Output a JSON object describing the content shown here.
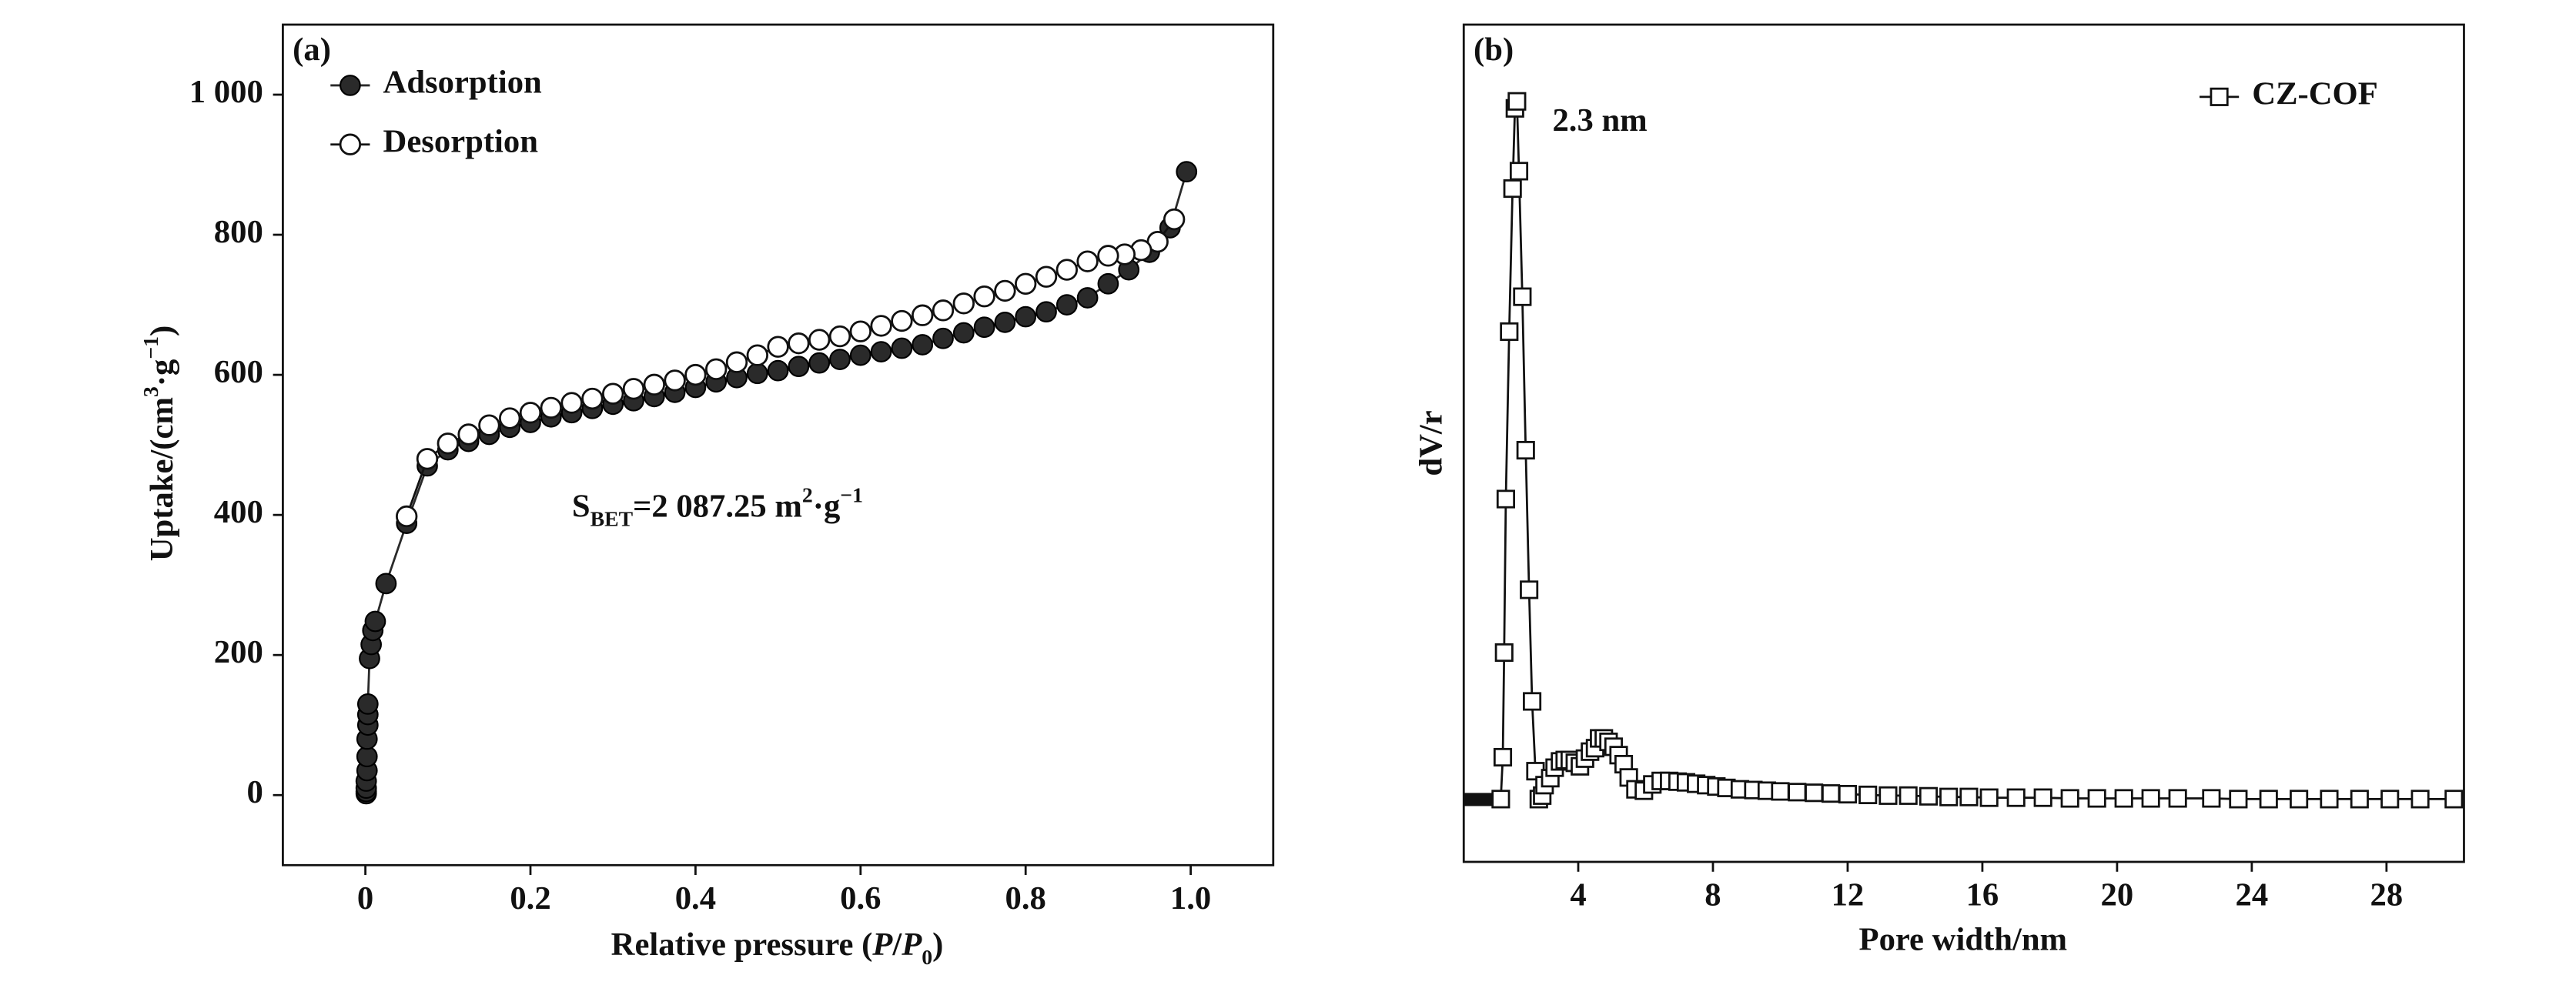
{
  "chart_data": [
    {
      "type": "scatter",
      "panel_label": "(a)",
      "xlabel": {
        "parts": [
          "Relative pressure (",
          "P",
          "/",
          "P",
          "0",
          ")"
        ]
      },
      "ylabel": {
        "parts": [
          "Uptake/(cm",
          "3",
          "·g",
          "−1",
          ")"
        ]
      },
      "annotation": {
        "parts": [
          "S",
          "BET",
          "=2 087.25 m",
          "2",
          "·g",
          "−1"
        ]
      },
      "xlim": [
        -0.1,
        1.1
      ],
      "ylim": [
        -100,
        1100
      ],
      "xticks": [
        0,
        0.2,
        0.4,
        0.6,
        0.8,
        {
          "value": 1,
          "label": "1.0"
        }
      ],
      "yticks": [
        0,
        200,
        400,
        600,
        800,
        {
          "value": 1000,
          "label": "1 000"
        }
      ],
      "legend": "upper left",
      "series": [
        {
          "name": "Adsorption",
          "color": "#2a2a2a",
          "marker": "filled-circle",
          "x": [
            0.001,
            0.001,
            0.001,
            0.001,
            0.002,
            0.002,
            0.002,
            0.003,
            0.003,
            0.003,
            0.005,
            0.007,
            0.009,
            0.012,
            0.025,
            0.05,
            0.075,
            0.1,
            0.125,
            0.15,
            0.175,
            0.2,
            0.225,
            0.25,
            0.275,
            0.3,
            0.325,
            0.35,
            0.375,
            0.4,
            0.425,
            0.45,
            0.475,
            0.5,
            0.525,
            0.55,
            0.575,
            0.6,
            0.625,
            0.65,
            0.675,
            0.7,
            0.725,
            0.75,
            0.775,
            0.8,
            0.825,
            0.85,
            0.875,
            0.9,
            0.925,
            0.95,
            0.975,
            0.995
          ],
          "values": [
            2,
            5,
            10,
            20,
            35,
            55,
            80,
            100,
            115,
            130,
            195,
            215,
            235,
            248,
            302,
            388,
            470,
            493,
            505,
            515,
            525,
            532,
            540,
            546,
            552,
            558,
            563,
            569,
            575,
            582,
            590,
            596,
            602,
            606,
            612,
            617,
            622,
            628,
            633,
            638,
            643,
            652,
            660,
            668,
            675,
            683,
            690,
            700,
            710,
            730,
            750,
            775,
            810,
            890
          ]
        },
        {
          "name": "Desorption",
          "color": "#111111",
          "marker": "open-circle",
          "x": [
            0.98,
            0.96,
            0.94,
            0.92,
            0.9,
            0.875,
            0.85,
            0.825,
            0.8,
            0.775,
            0.75,
            0.725,
            0.7,
            0.675,
            0.65,
            0.625,
            0.6,
            0.575,
            0.55,
            0.525,
            0.5,
            0.475,
            0.45,
            0.425,
            0.4,
            0.375,
            0.35,
            0.325,
            0.3,
            0.275,
            0.25,
            0.225,
            0.2,
            0.175,
            0.15,
            0.125,
            0.1,
            0.075,
            0.05
          ],
          "values": [
            822,
            790,
            778,
            772,
            770,
            762,
            750,
            740,
            730,
            720,
            712,
            702,
            692,
            685,
            677,
            670,
            662,
            655,
            650,
            645,
            640,
            628,
            618,
            608,
            600,
            592,
            586,
            580,
            573,
            566,
            560,
            553,
            546,
            538,
            528,
            515,
            502,
            480,
            398
          ]
        }
      ]
    },
    {
      "type": "scatter",
      "panel_label": "(b)",
      "xlabel": "Pore width/nm",
      "ylabel": "dV/r",
      "annotation": "2.3 nm",
      "xlim": [
        0.6,
        30.3
      ],
      "ylim": [
        -0.09,
        1.11
      ],
      "xticks": [
        4,
        8,
        12,
        16,
        20,
        24,
        28
      ],
      "legend": "upper right",
      "series": [
        {
          "name": "CZ-COF",
          "color": "#111111",
          "marker": "open-square",
          "x": [
            1.7,
            1.76,
            1.8,
            1.85,
            1.95,
            2.05,
            2.12,
            2.18,
            2.24,
            2.34,
            2.44,
            2.54,
            2.63,
            2.73,
            2.83,
            2.93,
            3.0,
            3.17,
            3.3,
            3.46,
            3.6,
            3.75,
            3.9,
            4.05,
            4.2,
            4.35,
            4.5,
            4.62,
            4.76,
            4.9,
            5.05,
            5.2,
            5.35,
            5.5,
            5.7,
            5.95,
            6.2,
            6.45,
            6.7,
            6.95,
            7.2,
            7.5,
            7.8,
            8.1,
            8.4,
            8.8,
            9.2,
            9.6,
            10.0,
            10.5,
            11.0,
            11.5,
            12.0,
            12.6,
            13.2,
            13.8,
            14.4,
            15.0,
            15.6,
            16.2,
            17.0,
            17.8,
            18.6,
            19.4,
            20.2,
            21.0,
            21.8,
            22.8,
            23.6,
            24.5,
            25.4,
            26.3,
            27.2,
            28.1,
            29.0,
            30.0
          ],
          "values": [
            0.0,
            0.06,
            0.21,
            0.43,
            0.67,
            0.875,
            0.99,
            1.0,
            0.9,
            0.72,
            0.5,
            0.3,
            0.14,
            0.04,
            0.0,
            0.005,
            0.02,
            0.03,
            0.045,
            0.054,
            0.056,
            0.056,
            0.052,
            0.047,
            0.058,
            0.068,
            0.073,
            0.087,
            0.087,
            0.082,
            0.075,
            0.063,
            0.05,
            0.031,
            0.014,
            0.012,
            0.021,
            0.026,
            0.026,
            0.025,
            0.024,
            0.022,
            0.02,
            0.018,
            0.016,
            0.014,
            0.013,
            0.012,
            0.011,
            0.01,
            0.009,
            0.008,
            0.007,
            0.006,
            0.005,
            0.005,
            0.004,
            0.003,
            0.003,
            0.002,
            0.002,
            0.002,
            0.001,
            0.001,
            0.001,
            0.001,
            0.001,
            0.001,
            0.0,
            0.0,
            0.0,
            0.0,
            0.0,
            0.0,
            0.0,
            0.0
          ]
        }
      ]
    }
  ]
}
